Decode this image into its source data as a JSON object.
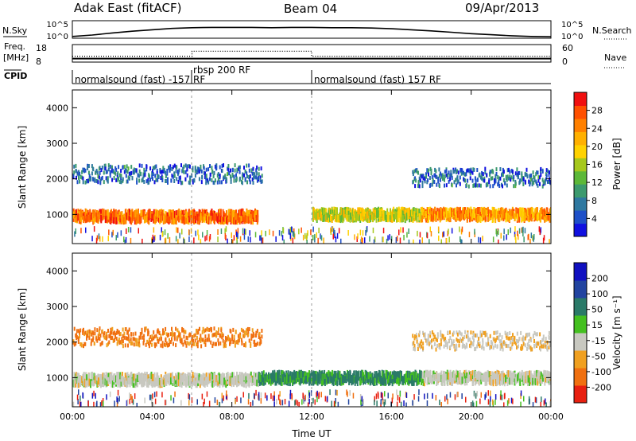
{
  "header": {
    "title": "Adak East (fitACF)",
    "beam": "Beam 04",
    "date": "09/Apr/2013"
  },
  "strip_labels": {
    "nsky": "N.Sky",
    "nsearch": "N.Search",
    "freq": "Freq.",
    "freq_unit": "[MHz]",
    "nave": "Nave",
    "cpid": "CPID"
  },
  "strip_ticks": {
    "n_top": "10^5",
    "n_bottom": "10^0",
    "freq_top": "18",
    "freq_bottom": "8",
    "nave_top": "60",
    "nave_bottom": "0"
  },
  "cpid_segments": [
    {
      "start": 0,
      "end": 6,
      "label": "normalsound (fast) -157 RF"
    },
    {
      "start": 6,
      "end": 12,
      "label": "rbsp 200 RF"
    },
    {
      "start": 12,
      "end": 24,
      "label": "normalsound (fast) 157 RF"
    }
  ],
  "axes": {
    "ylabel": "Slant Range [km]",
    "xlabel": "Time UT"
  },
  "colorbars": {
    "power": {
      "label": "Power [dB]",
      "ticks": [
        "4",
        "8",
        "12",
        "16",
        "20",
        "24",
        "28"
      ],
      "colors": [
        "#1010e0",
        "#1e50c8",
        "#2e78a0",
        "#3c9a6e",
        "#5cb838",
        "#a6c81c",
        "#ffd200",
        "#ffb000",
        "#ff8000",
        "#ff5000",
        "#f01010"
      ]
    },
    "velocity": {
      "label": "Velocity [m s⁻¹]",
      "ticks": [
        "200",
        "100",
        "50",
        "15",
        "-15",
        "-50",
        "-100",
        "-200"
      ],
      "colors": [
        "#1010c0",
        "#2244a0",
        "#2a7a68",
        "#44c020",
        "#c8c8c0",
        "#f0a020",
        "#f07010",
        "#e82010"
      ]
    }
  },
  "chart_data": [
    {
      "type": "line",
      "name": "Nsky / Nsearch",
      "x": [
        0,
        1,
        2,
        3,
        4,
        5,
        6,
        7,
        8,
        9,
        10,
        11,
        12,
        13,
        14,
        15,
        16,
        17,
        18,
        19,
        20,
        21,
        22,
        23,
        24
      ],
      "y": [
        0.5,
        0.9,
        1.5,
        2.0,
        2.4,
        2.8,
        3.0,
        3.1,
        3.1,
        3.1,
        3.0,
        3.1,
        3.1,
        3.0,
        3.0,
        2.9,
        2.7,
        2.4,
        2.1,
        1.7,
        1.3,
        1.0,
        0.7,
        0.5,
        0.4
      ],
      "ylim": [
        0,
        5
      ]
    },
    {
      "type": "line",
      "name": "Freq / Nave",
      "x": [
        0,
        6,
        6,
        12,
        12,
        24
      ],
      "freq_mhz": [
        10.0,
        10.0,
        10.0,
        10.0,
        10.0,
        10.0
      ],
      "nave": [
        20,
        20,
        37,
        37,
        20,
        20
      ],
      "freq_ylim": [
        8,
        18
      ],
      "nave_ylim": [
        0,
        60
      ]
    },
    {
      "type": "heatmap",
      "title": "Power [dB]",
      "xlabel": "Time UT",
      "ylabel": "Slant Range [km]",
      "xlim": [
        0,
        24
      ],
      "ylim": [
        180,
        4500
      ],
      "xticks": [
        "00:00",
        "04:00",
        "08:00",
        "12:00",
        "16:00",
        "20:00",
        "00:00"
      ],
      "yticks": [
        1000,
        2000,
        3000,
        4000
      ],
      "zlim": [
        0,
        30
      ],
      "features": [
        {
          "feature": "ground scatter band",
          "t_start": 0,
          "t_end": 9.3,
          "range_km": 950,
          "value_db": 24
        },
        {
          "feature": "ionospheric echoes",
          "t_start": 12,
          "t_end": 17.5,
          "range_km": 1000,
          "value_db": 16
        },
        {
          "feature": "ground scatter band",
          "t_start": 17.5,
          "t_end": 24,
          "range_km": 1000,
          "value_db": 22
        },
        {
          "feature": "far range scatter",
          "t_start": 0,
          "t_end": 9.5,
          "range_km": 2100,
          "value_db": 6
        },
        {
          "feature": "far range scatter",
          "t_start": 17,
          "t_end": 24,
          "range_km": 2000,
          "value_db": 6
        }
      ]
    },
    {
      "type": "heatmap",
      "title": "Velocity [m s⁻¹]",
      "xlabel": "Time UT",
      "ylabel": "Slant Range [km]",
      "xlim": [
        0,
        24
      ],
      "ylim": [
        180,
        4500
      ],
      "xticks": [
        "00:00",
        "04:00",
        "08:00",
        "12:00",
        "16:00",
        "20:00",
        "00:00"
      ],
      "yticks": [
        1000,
        2000,
        3000,
        4000
      ],
      "zlim": [
        -200,
        200
      ],
      "features": [
        {
          "feature": "ground scatter band",
          "t_start": 0,
          "t_end": 9.3,
          "range_km": 950,
          "value_ms": 0
        },
        {
          "feature": "ionospheric echoes",
          "t_start": 9.3,
          "t_end": 17.5,
          "range_km": 1000,
          "value_ms": 40
        },
        {
          "feature": "ground scatter band",
          "t_start": 17.5,
          "t_end": 24,
          "range_km": 1000,
          "value_ms": 0
        },
        {
          "feature": "far range scatter",
          "t_start": 0,
          "t_end": 9.5,
          "range_km": 2100,
          "value_ms": -40
        },
        {
          "feature": "far range scatter",
          "t_start": 17,
          "t_end": 24,
          "range_km": 2000,
          "value_ms": -10
        }
      ]
    }
  ]
}
